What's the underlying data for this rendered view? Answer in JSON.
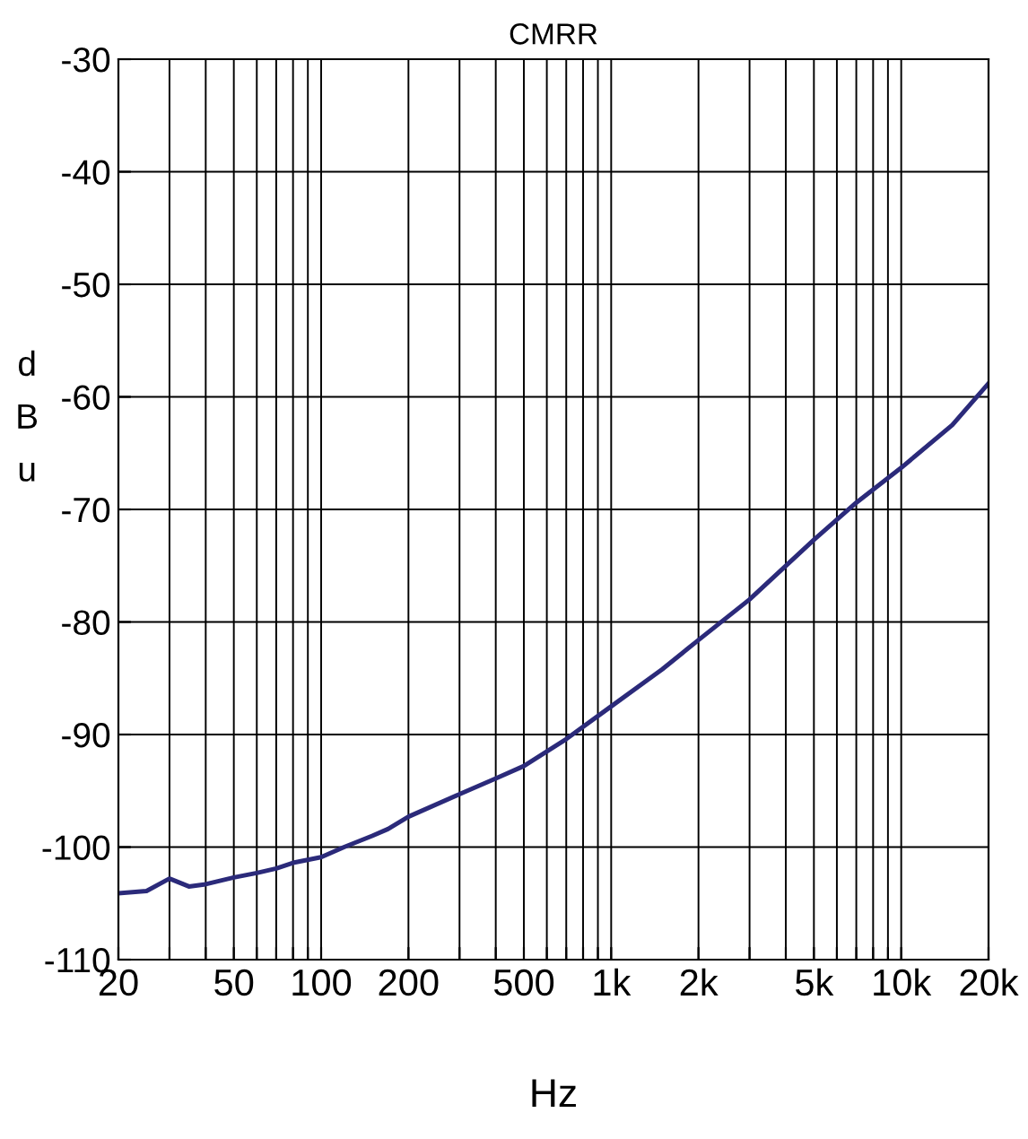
{
  "chart_data": {
    "type": "line",
    "title": "CMRR",
    "xlabel": "Hz",
    "ylabel": "d\nB\nu",
    "x": [
      20,
      25,
      30,
      35,
      40,
      50,
      60,
      70,
      80,
      100,
      120,
      150,
      170,
      200,
      300,
      400,
      500,
      700,
      1000,
      1500,
      2000,
      3000,
      5000,
      7000,
      10000,
      15000,
      20000
    ],
    "series": [
      {
        "color": "#2b2a7a",
        "values": [
          -104.1,
          -103.9,
          -102.8,
          -103.5,
          -103.3,
          -102.7,
          -102.3,
          -101.9,
          -101.4,
          -100.9,
          -100.0,
          -99.0,
          -98.4,
          -97.3,
          -95.3,
          -93.9,
          -92.8,
          -90.4,
          -87.5,
          -84.2,
          -81.6,
          -78.0,
          -72.7,
          -69.4,
          -66.3,
          -62.5,
          -58.8
        ]
      }
    ],
    "log": "x",
    "xlim": [
      20,
      20000
    ],
    "ylim": [
      -110,
      -30
    ],
    "xticks": [
      20,
      {
        "value": 30,
        "label": null
      },
      {
        "value": 40,
        "label": null
      },
      50,
      {
        "value": 60,
        "label": null
      },
      {
        "value": 70,
        "label": null
      },
      {
        "value": 80,
        "label": null
      },
      {
        "value": 90,
        "label": null
      },
      100,
      200,
      {
        "value": 300,
        "label": null
      },
      {
        "value": 400,
        "label": null
      },
      500,
      {
        "value": 600,
        "label": null
      },
      {
        "value": 700,
        "label": null
      },
      {
        "value": 800,
        "label": null
      },
      {
        "value": 900,
        "label": null
      },
      {
        "value": 1000,
        "label": "1k"
      },
      {
        "value": 2000,
        "label": "2k"
      },
      {
        "value": 3000,
        "label": null
      },
      {
        "value": 4000,
        "label": null
      },
      {
        "value": 5000,
        "label": "5k"
      },
      {
        "value": 6000,
        "label": null
      },
      {
        "value": 7000,
        "label": null
      },
      {
        "value": 8000,
        "label": null
      },
      {
        "value": 9000,
        "label": null
      },
      {
        "value": 10000,
        "label": "10k"
      },
      {
        "value": 20000,
        "label": "20k"
      }
    ],
    "yticks": [
      -110,
      -100,
      -90,
      -80,
      -70,
      -60,
      -50,
      -40,
      -30
    ],
    "grid": true
  }
}
